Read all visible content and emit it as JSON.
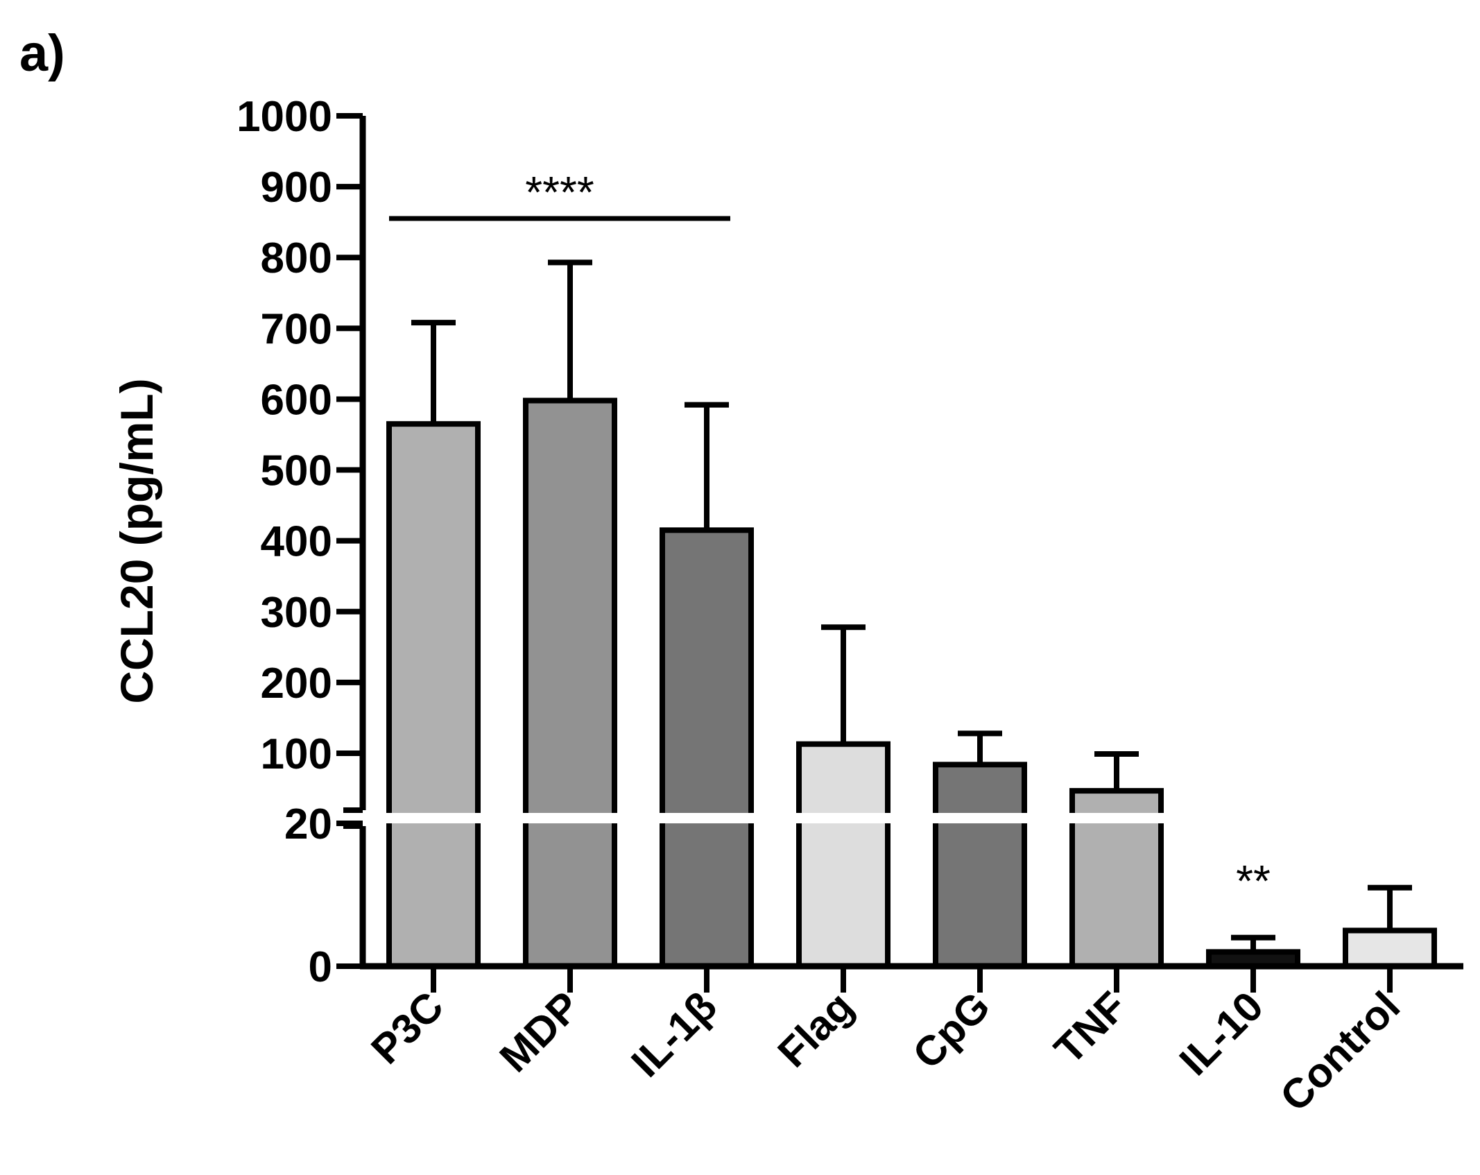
{
  "panel_label": "a)",
  "chart_data": {
    "type": "bar",
    "title": "",
    "xlabel": "",
    "ylabel": "CCL20 (pg/mL)",
    "categories": [
      "P3C",
      "MDP",
      "IL-1β",
      "Flag",
      "CpG",
      "TNF",
      "IL-10",
      "Control"
    ],
    "values": [
      565,
      598,
      415,
      113,
      84,
      47,
      2,
      5
    ],
    "errors": [
      143,
      195,
      177,
      165,
      44,
      52,
      2,
      6
    ],
    "colors": [
      "#b0b0b0",
      "#929292",
      "#757575",
      "#dddddd",
      "#757575",
      "#b0b0b0",
      "#111111",
      "#e6e6e6"
    ],
    "y_axis": {
      "broken": true,
      "lower_segment": {
        "range": [
          0,
          20
        ],
        "ticks": [
          0,
          20
        ]
      },
      "upper_segment": {
        "range": [
          20,
          1000
        ],
        "ticks": [
          100,
          200,
          300,
          400,
          500,
          600,
          700,
          800,
          900,
          1000
        ]
      }
    },
    "tick_labels": [
      "0",
      "20",
      "100",
      "200",
      "300",
      "400",
      "500",
      "600",
      "700",
      "800",
      "900",
      "1000"
    ],
    "grid": false,
    "legend": "none",
    "annotations": [
      {
        "text": "****",
        "span": [
          "P3C",
          "IL-1β"
        ]
      },
      {
        "text": "**",
        "category": "IL-10"
      }
    ]
  }
}
